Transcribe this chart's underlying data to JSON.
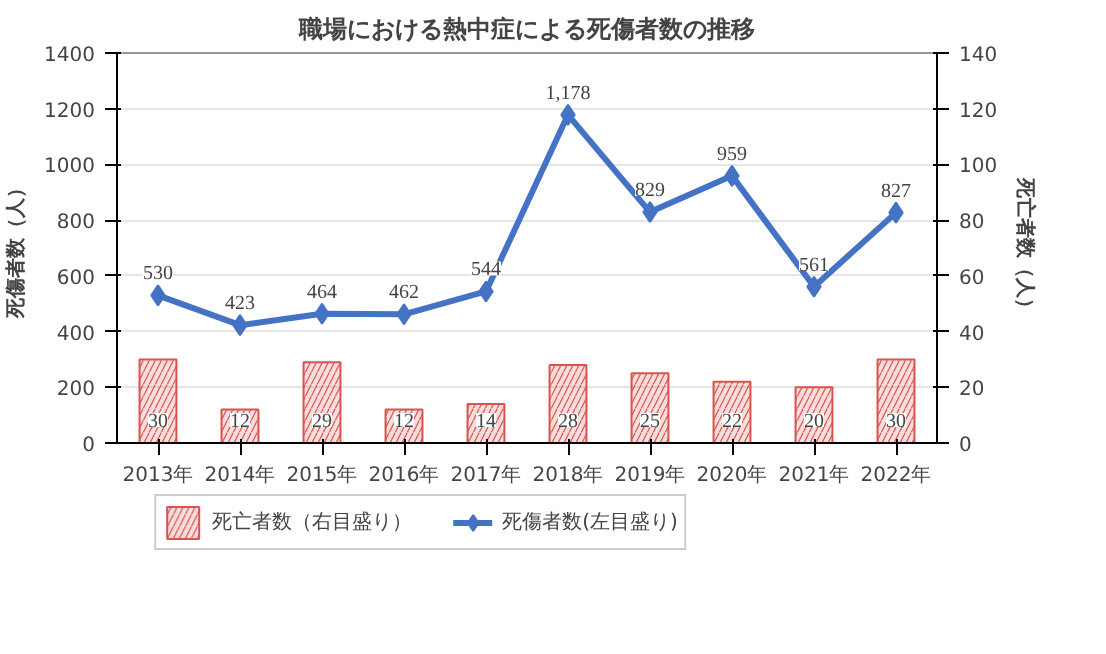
{
  "chart_data": {
    "type": "line",
    "title": "職場における熱中症による死傷者数の推移",
    "ylabel": "死傷者数（人）",
    "y2label": "死亡者数（人）",
    "categories": [
      "2013年",
      "2014年",
      "2015年",
      "2016年",
      "2017年",
      "2018年",
      "2019年",
      "2020年",
      "2021年",
      "2022年"
    ],
    "series": [
      {
        "name": "死亡者数（右目盛り）",
        "type": "bar",
        "axis": "y2",
        "color": "#d9534f",
        "values": [
          30,
          12,
          29,
          12,
          14,
          28,
          25,
          22,
          20,
          30
        ],
        "value_labels": [
          "30",
          "12",
          "29",
          "12",
          "14",
          "28",
          "25",
          "22",
          "20",
          "30"
        ]
      },
      {
        "name": "死傷者数(左目盛り)",
        "color": "#4472c4",
        "marker": "diamond",
        "values": [
          530,
          423,
          464,
          462,
          544,
          1178,
          829,
          959,
          561,
          827
        ],
        "value_labels": [
          "530",
          "423",
          "464",
          "462",
          "544",
          "1,178",
          "829",
          "959",
          "561",
          "827"
        ]
      }
    ],
    "ylim": [
      0,
      1400
    ],
    "yticks": [
      0,
      200,
      400,
      600,
      800,
      1000,
      1200,
      1400
    ],
    "y2lim": [
      0,
      140
    ],
    "y2ticks": [
      0,
      20,
      40,
      60,
      80,
      100,
      120,
      140
    ],
    "grid": "y",
    "legend": "bottom"
  }
}
